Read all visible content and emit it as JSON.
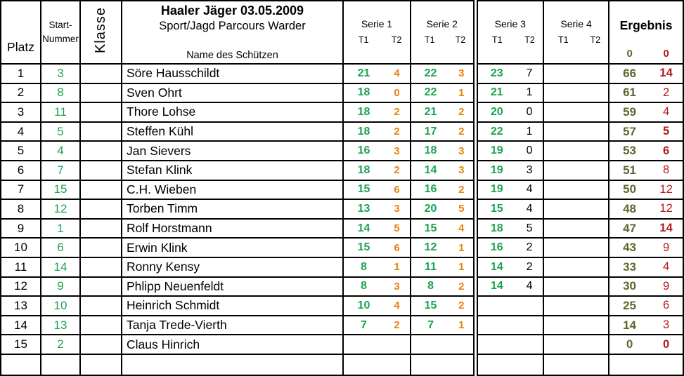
{
  "header": {
    "platz": "Platz",
    "start_line1": "Start-",
    "start_line2": "Nummer",
    "klasse": "Klasse",
    "title": "Haaler Jäger 03.05.2009",
    "subtitle": "Sport/Jagd Parcours Warder",
    "name_label": "Name des Schützen",
    "series": [
      {
        "label": "Serie 1",
        "t1": "T1",
        "t2": "T2"
      },
      {
        "label": "Serie 2",
        "t1": "T1",
        "t2": "T2"
      },
      {
        "label": "Serie 3",
        "t1": "T1",
        "t2": "T2"
      },
      {
        "label": "Serie 4",
        "t1": "T1",
        "t2": "T2"
      }
    ],
    "ergebnis_label": "Ergebnis",
    "erg_zero_green": "0",
    "erg_zero_red": "0"
  },
  "colors": {
    "green": "#1CA351",
    "orange": "#E8820D",
    "olive": "#5A682E",
    "red": "#B41A1A",
    "border": "#000000"
  },
  "rows": [
    {
      "platz": "1",
      "nr": "3",
      "klasse": "",
      "name": "Söre Hausschildt",
      "s1t1": "21",
      "s1t2": "4",
      "s2t1": "22",
      "s2t2": "3",
      "s3t1": "23",
      "s3t2": "7",
      "s4t1": "",
      "s4t2": "",
      "erg1": "66",
      "erg2": "14",
      "erg2_bold": true
    },
    {
      "platz": "2",
      "nr": "8",
      "klasse": "",
      "name": "Sven Ohrt",
      "s1t1": "18",
      "s1t2": "0",
      "s2t1": "22",
      "s2t2": "1",
      "s3t1": "21",
      "s3t2": "1",
      "s4t1": "",
      "s4t2": "",
      "erg1": "61",
      "erg2": "2",
      "erg2_bold": false
    },
    {
      "platz": "3",
      "nr": "11",
      "klasse": "",
      "name": "Thore Lohse",
      "s1t1": "18",
      "s1t2": "2",
      "s2t1": "21",
      "s2t2": "2",
      "s3t1": "20",
      "s3t2": "0",
      "s4t1": "",
      "s4t2": "",
      "erg1": "59",
      "erg2": "4",
      "erg2_bold": false
    },
    {
      "platz": "4",
      "nr": "5",
      "klasse": "",
      "name": "Steffen Kühl",
      "s1t1": "18",
      "s1t2": "2",
      "s2t1": "17",
      "s2t2": "2",
      "s3t1": "22",
      "s3t2": "1",
      "s4t1": "",
      "s4t2": "",
      "erg1": "57",
      "erg2": "5",
      "erg2_bold": true
    },
    {
      "platz": "5",
      "nr": "4",
      "klasse": "",
      "name": "Jan Sievers",
      "s1t1": "16",
      "s1t2": "3",
      "s2t1": "18",
      "s2t2": "3",
      "s3t1": "19",
      "s3t2": "0",
      "s4t1": "",
      "s4t2": "",
      "erg1": "53",
      "erg2": "6",
      "erg2_bold": true
    },
    {
      "platz": "6",
      "nr": "7",
      "klasse": "",
      "name": "Stefan Klink",
      "s1t1": "18",
      "s1t2": "2",
      "s2t1": "14",
      "s2t2": "3",
      "s3t1": "19",
      "s3t2": "3",
      "s4t1": "",
      "s4t2": "",
      "erg1": "51",
      "erg2": "8",
      "erg2_bold": false
    },
    {
      "platz": "7",
      "nr": "15",
      "klasse": "",
      "name": "C.H. Wieben",
      "s1t1": "15",
      "s1t2": "6",
      "s2t1": "16",
      "s2t2": "2",
      "s3t1": "19",
      "s3t2": "4",
      "s4t1": "",
      "s4t2": "",
      "erg1": "50",
      "erg2": "12",
      "erg2_bold": false
    },
    {
      "platz": "8",
      "nr": "12",
      "klasse": "",
      "name": "Torben Timm",
      "s1t1": "13",
      "s1t2": "3",
      "s2t1": "20",
      "s2t2": "5",
      "s3t1": "15",
      "s3t2": "4",
      "s4t1": "",
      "s4t2": "",
      "erg1": "48",
      "erg2": "12",
      "erg2_bold": false
    },
    {
      "platz": "9",
      "nr": "1",
      "klasse": "",
      "name": "Rolf Horstmann",
      "s1t1": "14",
      "s1t2": "5",
      "s2t1": "15",
      "s2t2": "4",
      "s3t1": "18",
      "s3t2": "5",
      "s4t1": "",
      "s4t2": "",
      "erg1": "47",
      "erg2": "14",
      "erg2_bold": true
    },
    {
      "platz": "10",
      "nr": "6",
      "klasse": "",
      "name": "Erwin Klink",
      "s1t1": "15",
      "s1t2": "6",
      "s2t1": "12",
      "s2t2": "1",
      "s3t1": "16",
      "s3t2": "2",
      "s4t1": "",
      "s4t2": "",
      "erg1": "43",
      "erg2": "9",
      "erg2_bold": false
    },
    {
      "platz": "11",
      "nr": "14",
      "klasse": "",
      "name": "Ronny Kensy",
      "s1t1": "8",
      "s1t2": "1",
      "s2t1": "11",
      "s2t2": "1",
      "s3t1": "14",
      "s3t2": "2",
      "s4t1": "",
      "s4t2": "",
      "erg1": "33",
      "erg2": "4",
      "erg2_bold": false
    },
    {
      "platz": "12",
      "nr": "9",
      "klasse": "",
      "name": "Phlipp Neuenfeldt",
      "s1t1": "8",
      "s1t2": "3",
      "s2t1": "8",
      "s2t2": "2",
      "s3t1": "14",
      "s3t2": "4",
      "s4t1": "",
      "s4t2": "",
      "erg1": "30",
      "erg2": "9",
      "erg2_bold": false
    },
    {
      "platz": "13",
      "nr": "10",
      "klasse": "",
      "name": "Heinrich Schmidt",
      "s1t1": "10",
      "s1t2": "4",
      "s2t1": "15",
      "s2t2": "2",
      "s3t1": "",
      "s3t2": "",
      "s4t1": "",
      "s4t2": "",
      "erg1": "25",
      "erg2": "6",
      "erg2_bold": false
    },
    {
      "platz": "14",
      "nr": "13",
      "klasse": "",
      "name": "Tanja Trede-Vierth",
      "s1t1": "7",
      "s1t2": "2",
      "s2t1": "7",
      "s2t2": "1",
      "s3t1": "",
      "s3t2": "",
      "s4t1": "",
      "s4t2": "",
      "erg1": "14",
      "erg2": "3",
      "erg2_bold": false
    },
    {
      "platz": "15",
      "nr": "2",
      "klasse": "",
      "name": "Claus Hinrich",
      "s1t1": "",
      "s1t2": "",
      "s2t1": "",
      "s2t2": "",
      "s3t1": "",
      "s3t2": "",
      "s4t1": "",
      "s4t2": "",
      "erg1": "0",
      "erg2": "0",
      "erg2_bold": true
    },
    {
      "platz": "",
      "nr": "",
      "klasse": "",
      "name": "",
      "s1t1": "",
      "s1t2": "",
      "s2t1": "",
      "s2t2": "",
      "s3t1": "",
      "s3t2": "",
      "s4t1": "",
      "s4t2": "",
      "erg1": "",
      "erg2": "",
      "erg2_bold": false
    }
  ]
}
